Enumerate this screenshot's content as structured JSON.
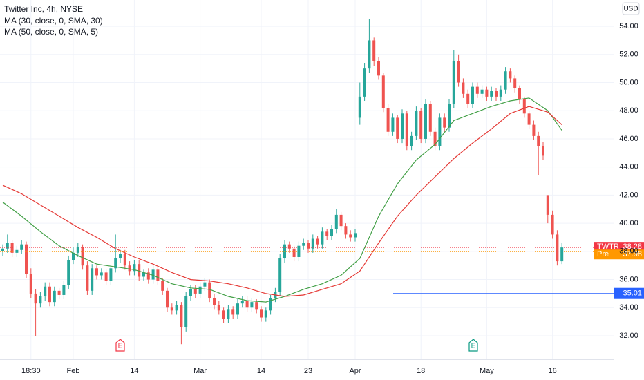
{
  "chart_data": {
    "type": "candlestick",
    "title": "Twitter Inc, 4h, NYSE",
    "currency": "USD",
    "up_color": "#26a69a",
    "down_color": "#ef5350",
    "categories": [
      null,
      null,
      null,
      null,
      null,
      null,
      "18:30",
      null,
      null,
      null,
      null,
      null,
      null,
      null,
      null,
      "Feb",
      null,
      null,
      null,
      null,
      null,
      null,
      null,
      null,
      null,
      null,
      null,
      null,
      "14",
      null,
      null,
      null,
      null,
      null,
      null,
      null,
      null,
      null,
      null,
      null,
      null,
      null,
      "Mar",
      null,
      null,
      null,
      null,
      null,
      null,
      null,
      null,
      null,
      null,
      null,
      null,
      "14",
      null,
      null,
      null,
      null,
      null,
      null,
      null,
      null,
      null,
      "23",
      null,
      null,
      null,
      null,
      null,
      null,
      null,
      null,
      null,
      "Apr",
      null,
      null,
      null,
      null,
      null,
      null,
      null,
      null,
      null,
      null,
      null,
      null,
      null,
      "18",
      null,
      null,
      null,
      null,
      null,
      null,
      null,
      null,
      null,
      null,
      null,
      null,
      null,
      "May",
      null,
      null,
      null,
      null,
      null,
      null,
      null,
      null,
      null,
      null,
      null,
      null,
      null,
      "16",
      null,
      null
    ],
    "open": [
      38.0,
      38.2,
      38.6,
      37.9,
      38.1,
      38.5,
      36.4,
      35.0,
      34.3,
      34.8,
      35.5,
      34.4,
      35.2,
      34.9,
      35.6,
      37.4,
      37.9,
      38.3,
      37.0,
      35.2,
      36.8,
      36.3,
      36.5,
      35.9,
      36.8,
      37.5,
      37.8,
      37.0,
      36.6,
      37.1,
      36.2,
      36.5,
      36.0,
      36.7,
      35.9,
      35.2,
      34.0,
      33.8,
      34.2,
      32.6,
      34.8,
      35.3,
      35.0,
      35.5,
      35.8,
      34.7,
      34.2,
      33.8,
      33.2,
      33.9,
      33.5,
      34.3,
      34.5,
      34.0,
      34.4,
      33.9,
      33.3,
      33.8,
      34.7,
      35.1,
      37.5,
      38.5,
      38.2,
      37.6,
      38.4,
      38.6,
      38.2,
      38.9,
      38.5,
      39.4,
      39.1,
      39.6,
      40.6,
      39.8,
      39.2,
      39.0,
      47.5,
      49.0,
      51.0,
      53.0,
      51.5,
      50.5,
      48.2,
      46.5,
      47.5,
      46.0,
      47.8,
      45.5,
      46.2,
      48.0,
      46.0,
      48.5,
      46.5,
      45.5,
      47.5,
      46.8,
      48.5,
      51.5,
      50.0,
      49.2,
      48.5,
      49.7,
      49.2,
      49.5,
      49.0,
      49.4,
      49.0,
      49.5,
      50.8,
      50.3,
      49.6,
      48.8,
      47.8,
      47.0,
      46.2,
      45.5,
      42.0,
      40.6,
      39.2,
      37.3
    ],
    "high": [
      38.5,
      39.2,
      38.8,
      38.4,
      38.8,
      38.7,
      36.8,
      35.3,
      35.1,
      35.8,
      35.8,
      35.5,
      35.4,
      35.9,
      37.7,
      38.3,
      38.6,
      38.5,
      37.3,
      37.1,
      37.0,
      36.8,
      36.7,
      37.0,
      39.2,
      38.1,
      38.1,
      37.3,
      37.4,
      37.4,
      36.7,
      36.8,
      37.0,
      36.9,
      36.1,
      35.4,
      34.3,
      34.5,
      34.4,
      35.1,
      35.6,
      35.6,
      35.8,
      36.1,
      36.0,
      35.0,
      34.5,
      34.0,
      34.2,
      34.1,
      34.6,
      34.8,
      34.8,
      34.7,
      34.6,
      34.1,
      34.0,
      34.9,
      35.4,
      37.8,
      38.8,
      38.7,
      38.4,
      38.7,
      38.9,
      38.8,
      39.2,
      39.1,
      39.7,
      39.6,
      39.9,
      41.0,
      40.8,
      40.0,
      39.5,
      39.6,
      50.0,
      51.4,
      54.5,
      53.2,
      51.8,
      50.7,
      48.5,
      47.8,
      47.7,
      48.1,
      48.0,
      46.5,
      48.3,
      48.2,
      48.8,
      48.7,
      46.8,
      47.8,
      47.8,
      48.8,
      52.3,
      52.0,
      50.3,
      49.5,
      50.0,
      50.0,
      49.8,
      49.7,
      49.7,
      49.6,
      49.8,
      51.1,
      51.0,
      50.5,
      49.8,
      49.0,
      48.0,
      47.3,
      46.5,
      45.8,
      42.0,
      40.9,
      39.5,
      38.6
    ],
    "low": [
      37.7,
      37.9,
      37.6,
      37.6,
      37.8,
      36.1,
      34.7,
      32.0,
      34.0,
      34.5,
      34.1,
      34.1,
      34.6,
      34.6,
      35.3,
      37.1,
      37.6,
      36.7,
      34.9,
      34.9,
      36.0,
      36.0,
      35.6,
      35.6,
      36.5,
      37.2,
      36.7,
      36.3,
      36.3,
      35.9,
      35.9,
      35.7,
      35.7,
      35.6,
      34.9,
      33.7,
      33.5,
      33.5,
      31.4,
      32.3,
      34.5,
      34.7,
      34.7,
      35.2,
      34.4,
      33.9,
      33.5,
      32.9,
      32.9,
      33.2,
      33.2,
      34.0,
      33.7,
      33.7,
      33.6,
      33.0,
      33.0,
      33.5,
      34.4,
      34.8,
      37.2,
      37.9,
      37.3,
      37.3,
      38.1,
      37.9,
      37.9,
      38.2,
      38.2,
      38.8,
      38.8,
      39.3,
      39.5,
      38.9,
      38.7,
      38.7,
      47.0,
      48.7,
      50.7,
      51.2,
      50.2,
      47.9,
      46.2,
      46.2,
      45.7,
      45.7,
      45.2,
      45.2,
      45.9,
      45.7,
      45.7,
      46.2,
      45.2,
      45.2,
      46.5,
      46.5,
      48.2,
      49.7,
      48.9,
      48.2,
      48.2,
      48.9,
      48.9,
      48.7,
      48.7,
      48.7,
      48.7,
      49.2,
      50.0,
      49.3,
      48.5,
      47.5,
      46.7,
      45.9,
      43.4,
      44.5,
      40.0,
      38.9,
      37.0,
      37.1
    ],
    "close": [
      38.2,
      38.6,
      37.9,
      38.1,
      38.5,
      36.4,
      35.0,
      34.3,
      34.8,
      35.5,
      34.4,
      35.2,
      34.9,
      35.6,
      37.4,
      37.9,
      38.3,
      37.0,
      35.2,
      36.8,
      36.3,
      36.5,
      35.9,
      36.8,
      37.5,
      37.8,
      37.0,
      36.6,
      37.1,
      36.2,
      36.5,
      36.0,
      36.7,
      35.9,
      35.2,
      34.0,
      33.8,
      34.2,
      32.6,
      34.8,
      35.3,
      35.0,
      35.5,
      35.8,
      34.7,
      34.2,
      33.8,
      33.2,
      33.9,
      33.5,
      34.3,
      34.5,
      34.0,
      34.4,
      33.9,
      33.3,
      33.8,
      34.7,
      35.1,
      37.5,
      38.5,
      38.2,
      37.6,
      38.4,
      38.6,
      38.2,
      38.9,
      38.5,
      39.4,
      39.1,
      39.6,
      40.6,
      39.8,
      39.2,
      39.0,
      39.3,
      49.0,
      51.0,
      53.0,
      51.5,
      50.5,
      48.2,
      46.5,
      47.5,
      46.0,
      47.8,
      45.5,
      46.2,
      48.0,
      46.0,
      48.5,
      46.5,
      45.5,
      47.5,
      46.8,
      48.5,
      51.5,
      50.0,
      49.2,
      48.5,
      49.7,
      49.2,
      49.5,
      49.0,
      49.4,
      49.0,
      49.5,
      50.8,
      50.3,
      49.6,
      48.8,
      47.8,
      47.0,
      46.2,
      45.5,
      44.8,
      40.6,
      39.2,
      37.3,
      38.28
    ],
    "series": [
      {
        "name": "MA (30, close, 0, SMA, 30)",
        "color": "#43a047",
        "x": [
          0,
          4,
          8,
          12,
          16,
          20,
          24,
          28,
          32,
          36,
          40,
          44,
          48,
          52,
          56,
          60,
          64,
          68,
          72,
          76,
          80,
          84,
          88,
          92,
          96,
          100,
          104,
          108,
          112,
          116,
          119
        ],
        "values": [
          41.5,
          40.5,
          39.4,
          38.4,
          37.7,
          37.1,
          36.9,
          36.7,
          36.3,
          35.7,
          35.4,
          35.3,
          34.8,
          34.5,
          34.4,
          34.8,
          35.3,
          35.7,
          36.3,
          37.5,
          40.5,
          42.8,
          44.5,
          45.6,
          47.3,
          47.8,
          48.3,
          48.7,
          48.9,
          48.0,
          46.6
        ]
      },
      {
        "name": "MA (50, close, 0, SMA, 5)",
        "color": "#e53935",
        "x": [
          0,
          4,
          8,
          12,
          16,
          20,
          24,
          28,
          32,
          36,
          40,
          44,
          48,
          52,
          56,
          60,
          64,
          68,
          72,
          76,
          80,
          84,
          88,
          92,
          96,
          100,
          104,
          108,
          112,
          116,
          119
        ],
        "values": [
          42.7,
          42.1,
          41.3,
          40.5,
          39.7,
          39.0,
          38.2,
          37.6,
          37.1,
          36.5,
          36.0,
          35.9,
          35.7,
          35.4,
          35.0,
          34.8,
          34.9,
          35.3,
          35.7,
          36.6,
          38.6,
          40.5,
          42.0,
          43.3,
          44.6,
          45.7,
          46.7,
          47.8,
          48.3,
          47.9,
          47.0
        ]
      }
    ],
    "last_price": {
      "label": "TWTR",
      "value": 38.28,
      "color": "#f23645"
    },
    "premarket": {
      "label": "Pre",
      "value": 37.98,
      "color": "#ff9800"
    },
    "horizontal_line": {
      "value": 35.01,
      "color": "#2962ff"
    },
    "earnings": [
      {
        "label": "E",
        "color": "#f23645"
      },
      {
        "label": "E",
        "color": "#089981"
      }
    ],
    "ylim": [
      30.33,
      55.87
    ],
    "yticks": [
      {
        "value": 32,
        "label": "32.00"
      },
      {
        "value": 34,
        "label": "34.00"
      },
      {
        "value": 36,
        "label": "36.00"
      },
      {
        "value": 38,
        "label": "38.00"
      },
      {
        "value": 40,
        "label": "40.00"
      },
      {
        "value": 42,
        "label": "42.00"
      },
      {
        "value": 44,
        "label": "44.00"
      },
      {
        "value": 46,
        "label": "46.00"
      },
      {
        "value": 48,
        "label": "48.00"
      },
      {
        "value": 50,
        "label": "50.00"
      },
      {
        "value": 52,
        "label": "52.00"
      },
      {
        "value": 54,
        "label": "54.00"
      }
    ],
    "grid": true
  }
}
